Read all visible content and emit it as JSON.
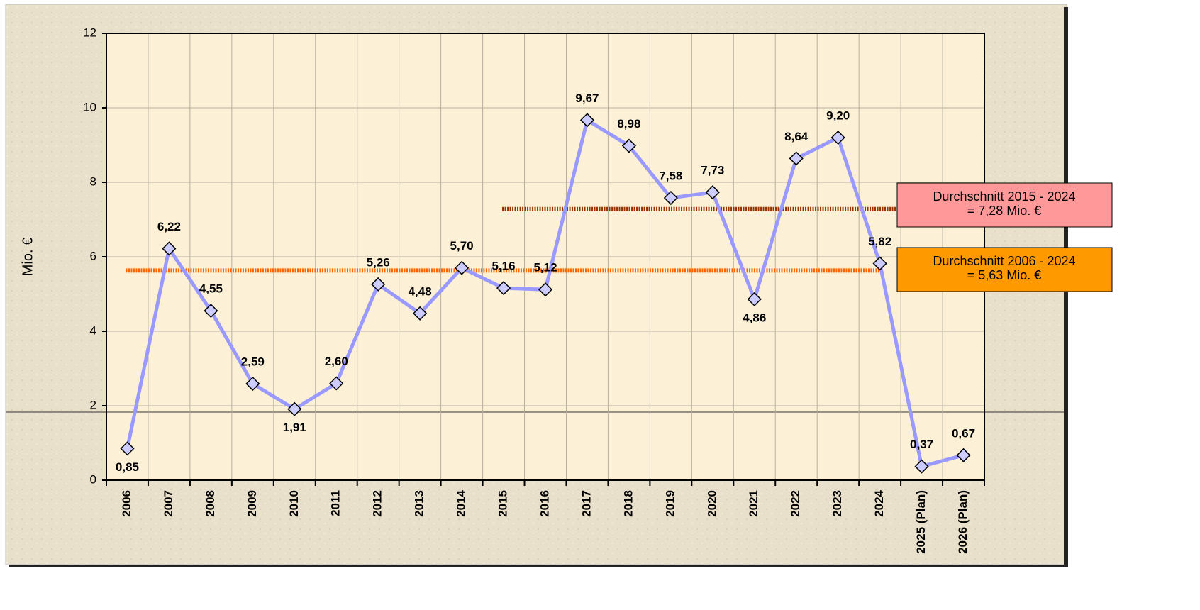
{
  "chart_data": {
    "type": "line",
    "y_label": "Mio. €",
    "categories": [
      "2006",
      "2007",
      "2008",
      "2009",
      "2010",
      "2011",
      "2012",
      "2013",
      "2014",
      "2015",
      "2016",
      "2017",
      "2018",
      "2019",
      "2020",
      "2021",
      "2022",
      "2023",
      "2024",
      "2025 (Plan)",
      "2026 (Plan)"
    ],
    "series": [
      {
        "color": "#9999ff",
        "values": [
          0.85,
          6.22,
          4.55,
          2.59,
          1.91,
          2.6,
          5.26,
          4.48,
          5.7,
          5.16,
          5.12,
          9.67,
          8.98,
          7.58,
          7.73,
          4.86,
          8.64,
          9.2,
          5.82,
          0.37,
          0.67
        ],
        "value_labels": [
          "0,85",
          "6,22",
          "4,55",
          "2,59",
          "1,91",
          "2,60",
          "5,26",
          "4,48",
          "5,70",
          "5,16",
          "5,12",
          "9,67",
          "8,98",
          "7,58",
          "7,73",
          "4,86",
          "8,64",
          "9,20",
          "5,82",
          "0,37",
          "0,67"
        ]
      }
    ],
    "averages": [
      {
        "label": "Durchschnitt 2015 - 2024",
        "value_label": "= 7,28 Mio. €",
        "value": 7.28,
        "range": [
          "2015",
          "2024"
        ],
        "color": "#993300",
        "box_color": "#ff9999"
      },
      {
        "label": "Durchschnitt 2006 - 2024",
        "value_label": "= 5,63 Mio. €",
        "value": 5.63,
        "range": [
          "2006",
          "2024"
        ],
        "color": "#ff6600",
        "box_color": "#ff9900"
      }
    ],
    "ylim": [
      0,
      12
    ],
    "yticks": [
      0,
      2,
      4,
      6,
      8,
      10,
      12
    ],
    "grid": true
  }
}
